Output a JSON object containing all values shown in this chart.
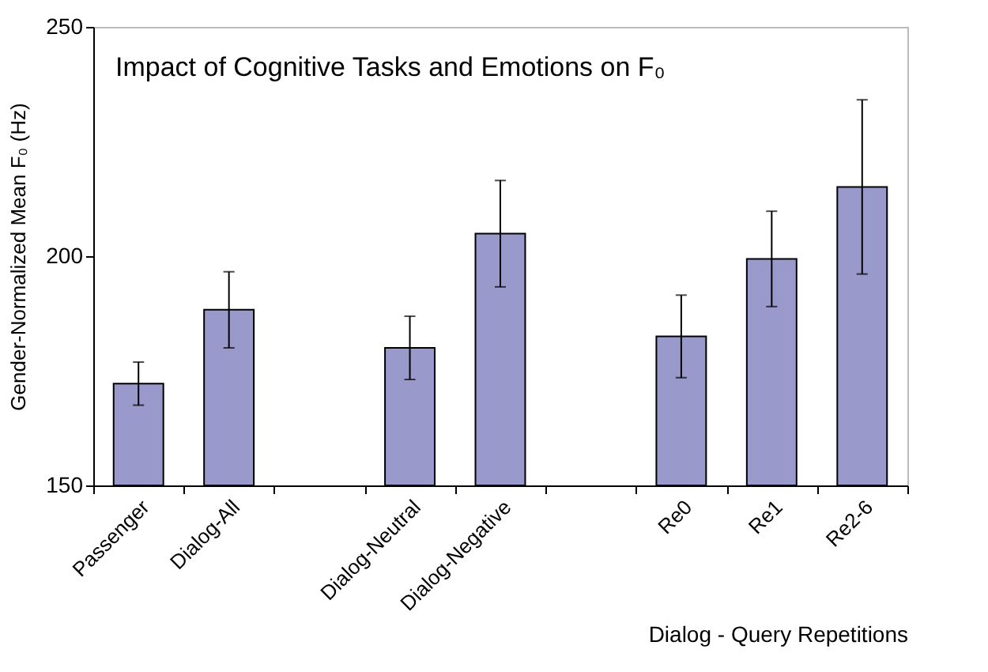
{
  "chart_data": {
    "type": "bar",
    "title": "Impact of Cognitive Tasks and Emotions on F₀",
    "xlabel": "Dialog - Query Repetitions",
    "ylabel": "Gender-Normalized Mean F₀ (Hz)",
    "categories": [
      "Passenger",
      "Dialog-All",
      null,
      "Dialog-Neutral",
      "Dialog-Negative",
      null,
      "Re0",
      "Re1",
      "Re2-6"
    ],
    "values": [
      172.2,
      188.3,
      null,
      180.0,
      204.9,
      null,
      182.5,
      199.4,
      215.1
    ],
    "errors": [
      4.7,
      8.3,
      null,
      6.9,
      11.6,
      null,
      9.0,
      10.4,
      19.0
    ],
    "color": "#9999cc",
    "ylim": [
      150,
      250
    ],
    "yticks": [
      150,
      200,
      250
    ],
    "grid": false
  }
}
